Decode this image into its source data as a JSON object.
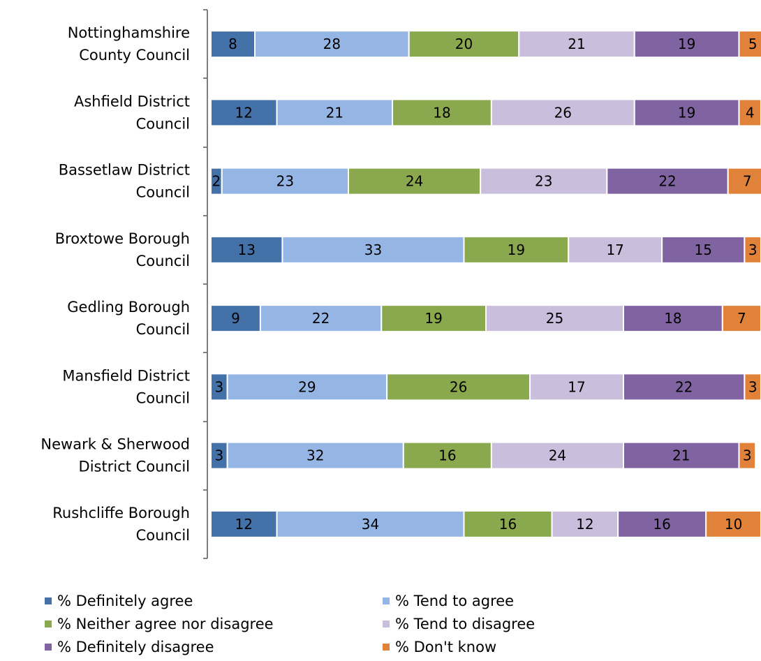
{
  "chart_data": {
    "type": "bar",
    "orientation": "horizontal",
    "stacked": true,
    "categories": [
      "Nottinghamshire County Council",
      "Ashfield District Council",
      "Bassetlaw District Council",
      "Broxtowe Borough Council",
      "Gedling Borough Council",
      "Mansfield District Council",
      "Newark & Sherwood District Council",
      "Rushcliffe Borough Council"
    ],
    "category_lines": [
      [
        "Nottinghamshire",
        "County Council"
      ],
      [
        "Ashfield District",
        "Council"
      ],
      [
        "Bassetlaw District",
        "Council"
      ],
      [
        "Broxtowe Borough",
        "Council"
      ],
      [
        "Gedling Borough",
        "Council"
      ],
      [
        "Mansfield District",
        "Council"
      ],
      [
        "Newark & Sherwood",
        "District Council"
      ],
      [
        "Rushcliffe Borough",
        "Council"
      ]
    ],
    "series": [
      {
        "name": "% Definitely agree",
        "color": "#4472a8",
        "values": [
          8,
          12,
          2,
          13,
          9,
          3,
          3,
          12
        ]
      },
      {
        "name": "% Tend to agree",
        "color": "#95b6e4",
        "values": [
          28,
          21,
          23,
          33,
          22,
          29,
          32,
          34
        ]
      },
      {
        "name": "% Neither agree nor disagree",
        "color": "#8aa84e",
        "values": [
          20,
          18,
          24,
          19,
          19,
          26,
          16,
          16
        ]
      },
      {
        "name": "% Tend to disagree",
        "color": "#c9bedc",
        "values": [
          21,
          26,
          23,
          17,
          25,
          17,
          24,
          12
        ]
      },
      {
        "name": "% Definitely disagree",
        "color": "#8064a2",
        "values": [
          19,
          19,
          22,
          15,
          18,
          22,
          21,
          16
        ]
      },
      {
        "name": "% Don't know",
        "color": "#e0823a",
        "values": [
          5,
          4,
          7,
          3,
          7,
          3,
          3,
          10
        ]
      }
    ],
    "xlim": [
      0,
      100
    ],
    "data_labels": true,
    "grid": false,
    "legend_position": "bottom",
    "title": "",
    "xlabel": "",
    "ylabel": ""
  }
}
